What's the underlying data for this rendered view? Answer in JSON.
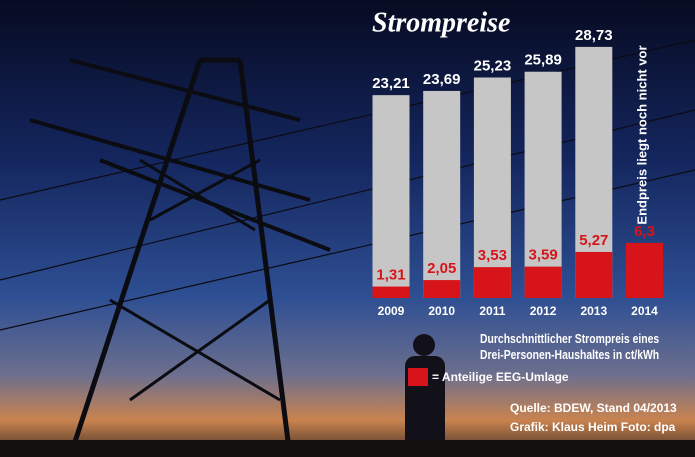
{
  "chart_data": {
    "type": "bar",
    "title": "Strompreise",
    "categories": [
      "2009",
      "2010",
      "2011",
      "2012",
      "2013",
      "2014"
    ],
    "series": [
      {
        "name": "Durchschnittlicher Strompreis eines Drei-Personen-Haushaltes in ct/kWh",
        "color": "#c6c6c6",
        "values": [
          23.21,
          23.69,
          25.23,
          25.89,
          28.73,
          null
        ],
        "value_labels": [
          "23,21",
          "23,69",
          "25,23",
          "25,89",
          "28,73",
          null
        ]
      },
      {
        "name": "= Anteilige EEG-Umlage",
        "color": "#d7141a",
        "values": [
          1.31,
          2.05,
          3.53,
          3.59,
          5.27,
          6.3
        ],
        "value_labels": [
          "1,31",
          "2,05",
          "3,53",
          "3,59",
          "5,27",
          "6,3"
        ]
      }
    ],
    "annotation": "Endpreis liegt noch nicht vor",
    "source": "Quelle: BDEW, Stand 04/2013",
    "credit": "Grafik: Klaus Heim   Foto: dpa"
  }
}
